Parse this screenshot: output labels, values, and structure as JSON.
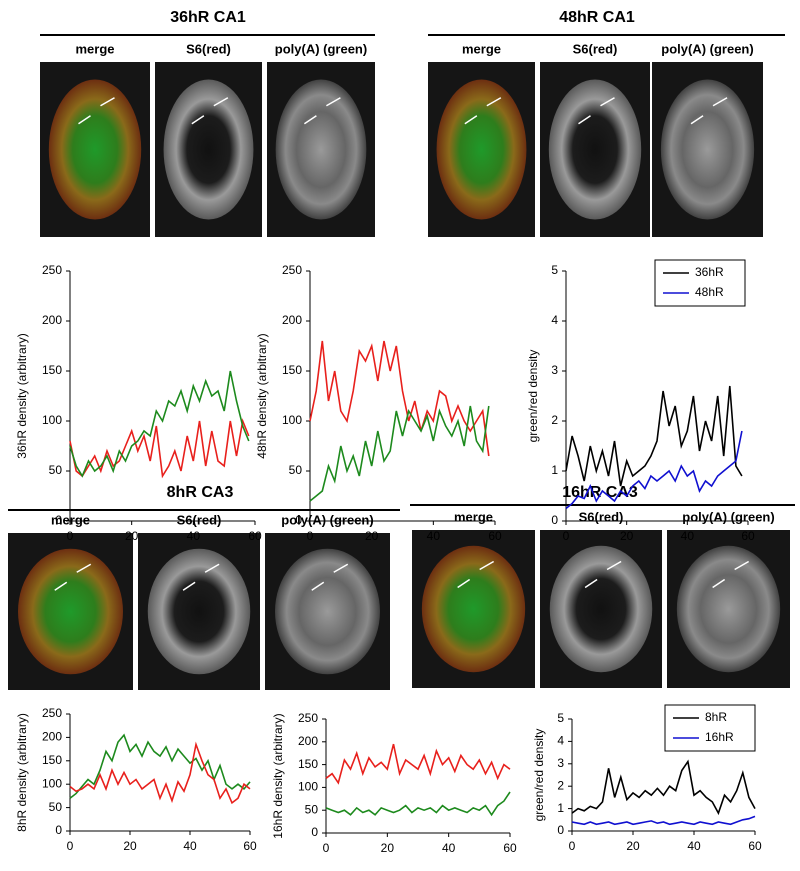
{
  "panels": [
    {
      "title": "36hR CA1",
      "image_labels": [
        "merge",
        "S6(red)",
        "poly(A) (green)"
      ]
    },
    {
      "title": "48hR CA1",
      "image_labels": [
        "merge",
        "S6(red)",
        "poly(A) (green)"
      ]
    },
    {
      "title": "8hR CA3",
      "image_labels": [
        "merge",
        "S6(red)",
        "poly(A) (green)"
      ]
    },
    {
      "title": "16hR CA3",
      "image_labels": [
        "merge",
        "S6(red)",
        "poly(A) (green)"
      ]
    }
  ],
  "chart_data": [
    {
      "type": "line",
      "ylabel": "36hR density (arbitrary)",
      "x": [
        0,
        2,
        4,
        6,
        8,
        10,
        12,
        14,
        16,
        18,
        20,
        22,
        24,
        26,
        28,
        30,
        32,
        34,
        36,
        38,
        40,
        42,
        44,
        46,
        48,
        50,
        52,
        54,
        56,
        58
      ],
      "xlim": [
        0,
        60
      ],
      "xticks": [
        0,
        20,
        40,
        60
      ],
      "ylim": [
        0,
        250
      ],
      "yticks": [
        0,
        50,
        100,
        150,
        200,
        250
      ],
      "series": [
        {
          "color": "#e8201c",
          "values": [
            80,
            50,
            45,
            55,
            65,
            50,
            70,
            55,
            60,
            75,
            90,
            70,
            85,
            60,
            95,
            45,
            55,
            70,
            50,
            85,
            60,
            100,
            55,
            90,
            60,
            55,
            100,
            65,
            100,
            85
          ]
        },
        {
          "color": "#1d8a1d",
          "values": [
            75,
            55,
            45,
            60,
            50,
            55,
            65,
            50,
            70,
            60,
            75,
            80,
            90,
            85,
            110,
            100,
            120,
            115,
            130,
            110,
            135,
            120,
            140,
            125,
            130,
            110,
            150,
            120,
            95,
            80
          ]
        }
      ]
    },
    {
      "type": "line",
      "ylabel": "48hR density (arbitrary)",
      "x": [
        0,
        2,
        4,
        6,
        8,
        10,
        12,
        14,
        16,
        18,
        20,
        22,
        24,
        26,
        28,
        30,
        32,
        34,
        36,
        38,
        40,
        42,
        44,
        46,
        48,
        50,
        52,
        54,
        56,
        58
      ],
      "xlim": [
        0,
        60
      ],
      "xticks": [
        0,
        20,
        40,
        60
      ],
      "ylim": [
        0,
        250
      ],
      "yticks": [
        0,
        50,
        100,
        150,
        200,
        250
      ],
      "series": [
        {
          "color": "#e8201c",
          "values": [
            100,
            130,
            180,
            120,
            150,
            110,
            100,
            130,
            170,
            160,
            175,
            140,
            180,
            150,
            175,
            130,
            100,
            120,
            90,
            110,
            100,
            130,
            125,
            100,
            115,
            100,
            90,
            100,
            110,
            65
          ]
        },
        {
          "color": "#1d8a1d",
          "values": [
            20,
            25,
            30,
            55,
            40,
            75,
            50,
            65,
            45,
            80,
            55,
            90,
            60,
            70,
            110,
            85,
            110,
            100,
            90,
            105,
            80,
            110,
            95,
            85,
            100,
            75,
            115,
            80,
            70,
            115
          ]
        }
      ]
    },
    {
      "type": "line",
      "ylabel": "green/red density",
      "legend": "upper right",
      "x": [
        0,
        2,
        4,
        6,
        8,
        10,
        12,
        14,
        16,
        18,
        20,
        22,
        24,
        26,
        28,
        30,
        32,
        34,
        36,
        38,
        40,
        42,
        44,
        46,
        48,
        50,
        52,
        54,
        56,
        58
      ],
      "xlim": [
        0,
        60
      ],
      "xticks": [
        0,
        20,
        40,
        60
      ],
      "ylim": [
        0,
        5
      ],
      "yticks": [
        0,
        1,
        2,
        3,
        4,
        5
      ],
      "series": [
        {
          "name": "36hR",
          "color": "#000000",
          "values": [
            1.0,
            1.7,
            1.3,
            0.8,
            1.5,
            1.0,
            1.4,
            0.9,
            1.6,
            0.7,
            1.2,
            0.9,
            1.0,
            1.1,
            1.3,
            1.6,
            2.6,
            1.9,
            2.3,
            1.5,
            1.8,
            2.5,
            1.4,
            2.0,
            1.6,
            2.5,
            1.3,
            2.7,
            1.1,
            0.9
          ]
        },
        {
          "name": "48hR",
          "color": "#1010d0",
          "values": [
            0.25,
            0.35,
            0.5,
            0.45,
            0.7,
            0.4,
            0.6,
            0.5,
            0.4,
            0.6,
            0.5,
            0.7,
            0.8,
            0.65,
            0.9,
            0.8,
            0.9,
            1.0,
            0.8,
            1.1,
            0.9,
            1.0,
            0.6,
            0.8,
            0.7,
            0.9,
            1.0,
            1.1,
            1.2,
            1.8
          ]
        }
      ]
    },
    {
      "type": "line",
      "ylabel": "8hR density (arbitrary)",
      "x": [
        0,
        2,
        4,
        6,
        8,
        10,
        12,
        14,
        16,
        18,
        20,
        22,
        24,
        26,
        28,
        30,
        32,
        34,
        36,
        38,
        40,
        42,
        44,
        46,
        48,
        50,
        52,
        54,
        56,
        58,
        60
      ],
      "xlim": [
        0,
        60
      ],
      "xticks": [
        0,
        20,
        40,
        60
      ],
      "ylim": [
        0,
        250
      ],
      "yticks": [
        0,
        50,
        100,
        150,
        200,
        250
      ],
      "series": [
        {
          "color": "#1d8a1d",
          "values": [
            70,
            80,
            95,
            110,
            100,
            130,
            170,
            150,
            190,
            205,
            170,
            185,
            160,
            190,
            170,
            160,
            180,
            150,
            175,
            160,
            145,
            155,
            130,
            150,
            110,
            140,
            100,
            90,
            100,
            90,
            105
          ]
        },
        {
          "color": "#e8201c",
          "values": [
            95,
            85,
            90,
            100,
            90,
            120,
            90,
            130,
            100,
            125,
            100,
            110,
            90,
            100,
            110,
            70,
            100,
            65,
            105,
            85,
            120,
            185,
            150,
            120,
            110,
            70,
            90,
            60,
            70,
            100,
            90
          ]
        }
      ]
    },
    {
      "type": "line",
      "ylabel": "16hR density (arbitrary)",
      "x": [
        0,
        2,
        4,
        6,
        8,
        10,
        12,
        14,
        16,
        18,
        20,
        22,
        24,
        26,
        28,
        30,
        32,
        34,
        36,
        38,
        40,
        42,
        44,
        46,
        48,
        50,
        52,
        54,
        56,
        58,
        60
      ],
      "xlim": [
        0,
        60
      ],
      "xticks": [
        0,
        20,
        40,
        60
      ],
      "ylim": [
        0,
        250
      ],
      "yticks": [
        0,
        50,
        100,
        150,
        200,
        250
      ],
      "series": [
        {
          "color": "#e8201c",
          "values": [
            120,
            130,
            110,
            160,
            140,
            175,
            130,
            165,
            145,
            155,
            140,
            195,
            130,
            160,
            150,
            140,
            170,
            130,
            180,
            150,
            165,
            135,
            170,
            150,
            140,
            160,
            130,
            155,
            120,
            150,
            140
          ]
        },
        {
          "color": "#1d8a1d",
          "values": [
            55,
            50,
            45,
            50,
            40,
            55,
            45,
            50,
            40,
            55,
            50,
            45,
            50,
            60,
            45,
            55,
            50,
            55,
            45,
            60,
            50,
            55,
            50,
            45,
            55,
            50,
            60,
            40,
            60,
            70,
            90
          ]
        }
      ]
    },
    {
      "type": "line",
      "ylabel": "green/red density",
      "legend": "upper right",
      "x": [
        0,
        2,
        4,
        6,
        8,
        10,
        12,
        14,
        16,
        18,
        20,
        22,
        24,
        26,
        28,
        30,
        32,
        34,
        36,
        38,
        40,
        42,
        44,
        46,
        48,
        50,
        52,
        54,
        56,
        58,
        60
      ],
      "xlim": [
        0,
        60
      ],
      "xticks": [
        0,
        20,
        40,
        60
      ],
      "ylim": [
        0,
        5
      ],
      "yticks": [
        0,
        1,
        2,
        3,
        4,
        5
      ],
      "series": [
        {
          "name": "8hR",
          "color": "#000000",
          "values": [
            0.8,
            1.0,
            0.9,
            1.1,
            1.0,
            1.3,
            2.8,
            1.5,
            2.4,
            1.4,
            1.7,
            1.5,
            1.8,
            1.6,
            1.9,
            1.6,
            2.0,
            1.8,
            2.7,
            3.1,
            1.6,
            1.8,
            1.5,
            1.3,
            0.8,
            1.6,
            1.3,
            1.8,
            2.6,
            1.5,
            1.0
          ]
        },
        {
          "name": "16hR",
          "color": "#1010d0",
          "values": [
            0.4,
            0.35,
            0.3,
            0.4,
            0.3,
            0.35,
            0.4,
            0.3,
            0.35,
            0.4,
            0.3,
            0.35,
            0.4,
            0.45,
            0.35,
            0.4,
            0.3,
            0.35,
            0.4,
            0.35,
            0.3,
            0.4,
            0.35,
            0.3,
            0.4,
            0.35,
            0.3,
            0.4,
            0.5,
            0.55,
            0.65
          ]
        }
      ]
    }
  ]
}
